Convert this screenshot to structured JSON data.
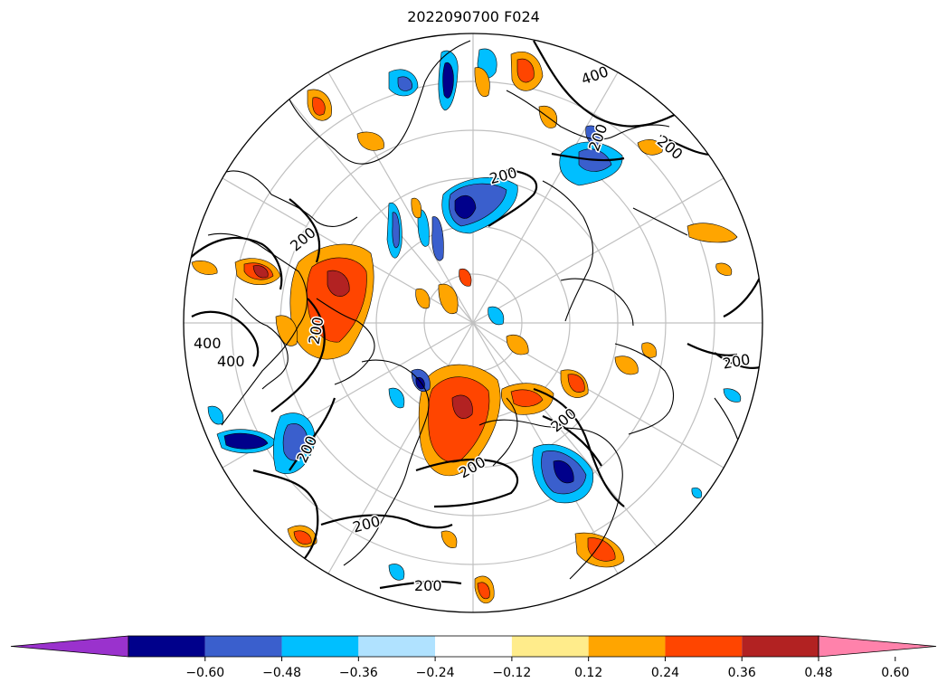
{
  "title": "2022090700 F024",
  "colors": {
    "land_outline": "#000000",
    "graticule": "#c0c0c0",
    "contour": "#000000"
  },
  "contour_labels": [
    "400",
    "200",
    "200",
    "200",
    "200",
    "200",
    "400",
    "400",
    "200",
    "200",
    "200",
    "200",
    "200",
    "200"
  ],
  "colorbar": {
    "extend": "both",
    "bins": [
      {
        "color": "#9a32cd"
      },
      {
        "color": "#00008b"
      },
      {
        "color": "#3a5fcd"
      },
      {
        "color": "#00bfff"
      },
      {
        "color": "#b0e2ff"
      },
      {
        "color": "#ffffff"
      },
      {
        "color": "#ffec8b"
      },
      {
        "color": "#ffa500"
      },
      {
        "color": "#ff4500"
      },
      {
        "color": "#b22222"
      },
      {
        "color": "#ff82ab"
      }
    ],
    "ticks": [
      "−0.60",
      "−0.48",
      "−0.36",
      "−0.24",
      "−0.12",
      "0.12",
      "0.24",
      "0.36",
      "0.48",
      "0.60"
    ]
  }
}
